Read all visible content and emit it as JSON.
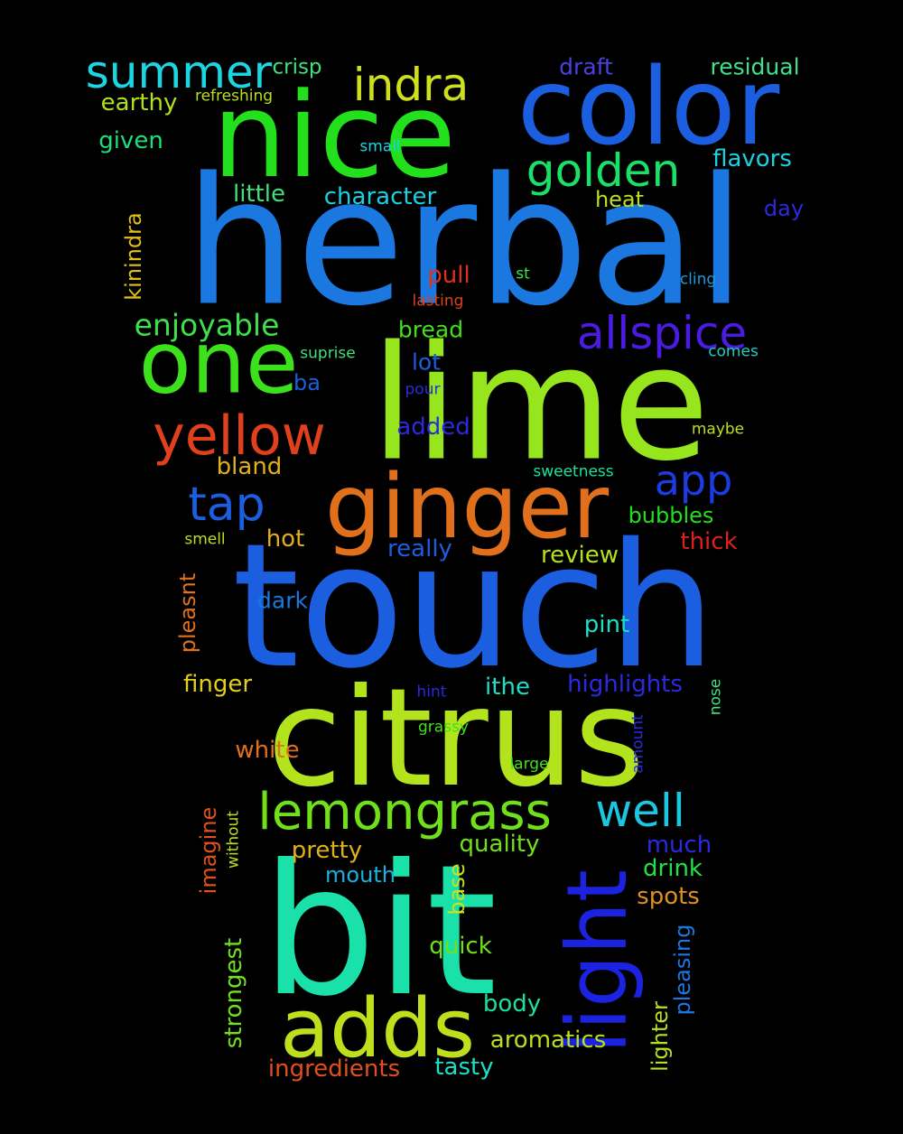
{
  "words": [
    {
      "text": "herbal",
      "color": "#1b78e0"
    },
    {
      "text": "nice",
      "color": "#22e01b"
    },
    {
      "text": "color",
      "color": "#1b5ee0"
    },
    {
      "text": "lime",
      "color": "#97e51c"
    },
    {
      "text": "touch",
      "color": "#1b5ee0"
    },
    {
      "text": "citrus",
      "color": "#b2e31d"
    },
    {
      "text": "bit",
      "color": "#1ae0aa"
    },
    {
      "text": "ginger",
      "color": "#e0701b"
    },
    {
      "text": "one",
      "color": "#3ce01b"
    },
    {
      "text": "adds",
      "color": "#bee01c"
    },
    {
      "text": "light",
      "color": "#1b22e0"
    },
    {
      "text": "yellow",
      "color": "#e0401b"
    },
    {
      "text": "lemongrass",
      "color": "#70e01b"
    },
    {
      "text": "summer",
      "color": "#1bd6e0"
    },
    {
      "text": "indra",
      "color": "#cde01b"
    },
    {
      "text": "golden",
      "color": "#1be068"
    },
    {
      "text": "allspice",
      "color": "#4a1be0"
    },
    {
      "text": "tap",
      "color": "#1b5ee0"
    },
    {
      "text": "app",
      "color": "#1b3ce0"
    },
    {
      "text": "well",
      "color": "#1bc6e0"
    },
    {
      "text": "enjoyable",
      "color": "#3ce04a"
    },
    {
      "text": "crisp",
      "color": "#40e07a"
    },
    {
      "text": "refreshing",
      "color": "#b9e01b"
    },
    {
      "text": "earthy",
      "color": "#b2e01b"
    },
    {
      "text": "given",
      "color": "#1be07a"
    },
    {
      "text": "draft",
      "color": "#4a40e0"
    },
    {
      "text": "residual",
      "color": "#40e08a"
    },
    {
      "text": "flavors",
      "color": "#1bd0e0"
    },
    {
      "text": "small",
      "color": "#1bd6e0"
    },
    {
      "text": "little",
      "color": "#40e07a"
    },
    {
      "text": "character",
      "color": "#1bd0e0"
    },
    {
      "text": "heat",
      "color": "#b9e01b"
    },
    {
      "text": "day",
      "color": "#2a2ae0"
    },
    {
      "text": "kinindra",
      "color": "#e0c01b"
    },
    {
      "text": "pull",
      "color": "#e0301b"
    },
    {
      "text": "st",
      "color": "#40e04a"
    },
    {
      "text": "cling",
      "color": "#1b9ae0"
    },
    {
      "text": "lasting",
      "color": "#e0401b"
    },
    {
      "text": "bread",
      "color": "#40e01b"
    },
    {
      "text": "suprise",
      "color": "#40e07a"
    },
    {
      "text": "comes",
      "color": "#1bd0c0"
    },
    {
      "text": "lot",
      "color": "#1b5ee0"
    },
    {
      "text": "ba",
      "color": "#1b5ee0"
    },
    {
      "text": "pour",
      "color": "#2a2ae0"
    },
    {
      "text": "added",
      "color": "#2a2ae0"
    },
    {
      "text": "maybe",
      "color": "#b9e01b"
    },
    {
      "text": "bland",
      "color": "#e0b01b"
    },
    {
      "text": "sweetness",
      "color": "#1be0a0"
    },
    {
      "text": "bubbles",
      "color": "#22e01b"
    },
    {
      "text": "smell",
      "color": "#b9e01b"
    },
    {
      "text": "hot",
      "color": "#e0b01b"
    },
    {
      "text": "really",
      "color": "#1b5ee0"
    },
    {
      "text": "thick",
      "color": "#e0201b"
    },
    {
      "text": "pleasnt",
      "color": "#e0701b"
    },
    {
      "text": "review",
      "color": "#b9e01b"
    },
    {
      "text": "dark",
      "color": "#1b78e0"
    },
    {
      "text": "pint",
      "color": "#1be0c6"
    },
    {
      "text": "finger",
      "color": "#e0d01b"
    },
    {
      "text": "ithe",
      "color": "#1be0c6"
    },
    {
      "text": "highlights",
      "color": "#2a2ae0"
    },
    {
      "text": "hint",
      "color": "#2a2ae0"
    },
    {
      "text": "nose",
      "color": "#40e07a"
    },
    {
      "text": "grassy",
      "color": "#40e01b"
    },
    {
      "text": "amount",
      "color": "#2a2ae0"
    },
    {
      "text": "white",
      "color": "#e0701b"
    },
    {
      "text": "large",
      "color": "#40e01b"
    },
    {
      "text": "imagine",
      "color": "#e0501b"
    },
    {
      "text": "without",
      "color": "#b9e01b"
    },
    {
      "text": "pretty",
      "color": "#e0b01b"
    },
    {
      "text": "quality",
      "color": "#70e01b"
    },
    {
      "text": "much",
      "color": "#2a2ae0"
    },
    {
      "text": "mouth",
      "color": "#1bb0e0"
    },
    {
      "text": "base",
      "color": "#cde01b"
    },
    {
      "text": "drink",
      "color": "#22e04a"
    },
    {
      "text": "spots",
      "color": "#e0901b"
    },
    {
      "text": "strongest",
      "color": "#70e01b"
    },
    {
      "text": "quick",
      "color": "#70e01b"
    },
    {
      "text": "pleasing",
      "color": "#1b78e0"
    },
    {
      "text": "body",
      "color": "#1be0a0"
    },
    {
      "text": "lighter",
      "color": "#b9e01b"
    },
    {
      "text": "aromatics",
      "color": "#b9e01b"
    },
    {
      "text": "ingredients",
      "color": "#e0501b"
    },
    {
      "text": "tasty",
      "color": "#1be0c6"
    }
  ]
}
